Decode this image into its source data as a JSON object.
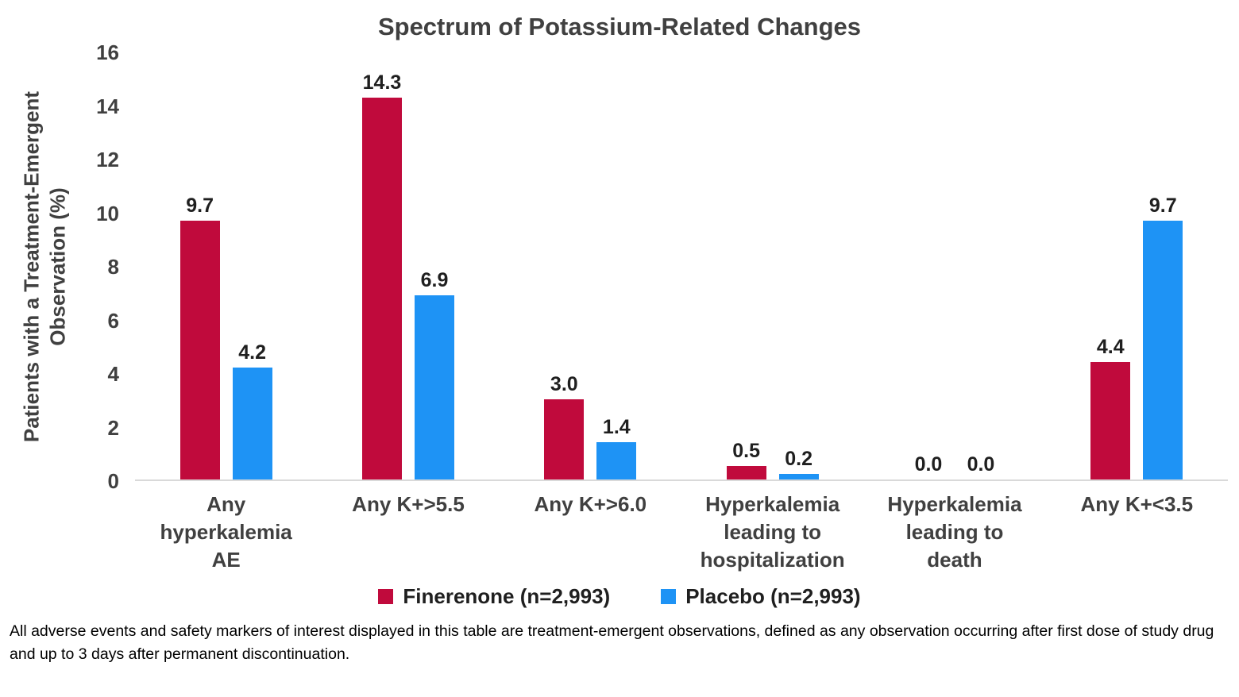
{
  "chart_data": {
    "type": "bar",
    "title": "Spectrum of Potassium-Related Changes",
    "xlabel": "",
    "ylabel": "Patients with a Treatment-Emergent\nObservation (%)",
    "ylim": [
      0,
      16
    ],
    "ytick_step": 2,
    "grid": false,
    "legend_position": "bottom",
    "value_label_decimals": 1,
    "categories": [
      "Any\nhyperkalemia\nAE",
      "Any K+>5.5",
      "Any K+>6.0",
      "Hyperkalemia\nleading to\nhospitalization",
      "Hyperkalemia\nleading to\ndeath",
      "Any K+<3.5"
    ],
    "series": [
      {
        "name": "Finerenone (n=2,993)",
        "color": "#C00A3C",
        "values": [
          9.7,
          14.3,
          3.0,
          0.5,
          0.0,
          4.4
        ]
      },
      {
        "name": "Placebo (n=2,993)",
        "color": "#1E93F5",
        "values": [
          4.2,
          6.9,
          1.4,
          0.2,
          0.0,
          9.7
        ]
      }
    ]
  },
  "footnote": "All adverse events and safety markers of interest displayed in this table are treatment-emergent observations, defined as any observation occurring after first dose of study drug and up to 3 days after permanent discontinuation."
}
